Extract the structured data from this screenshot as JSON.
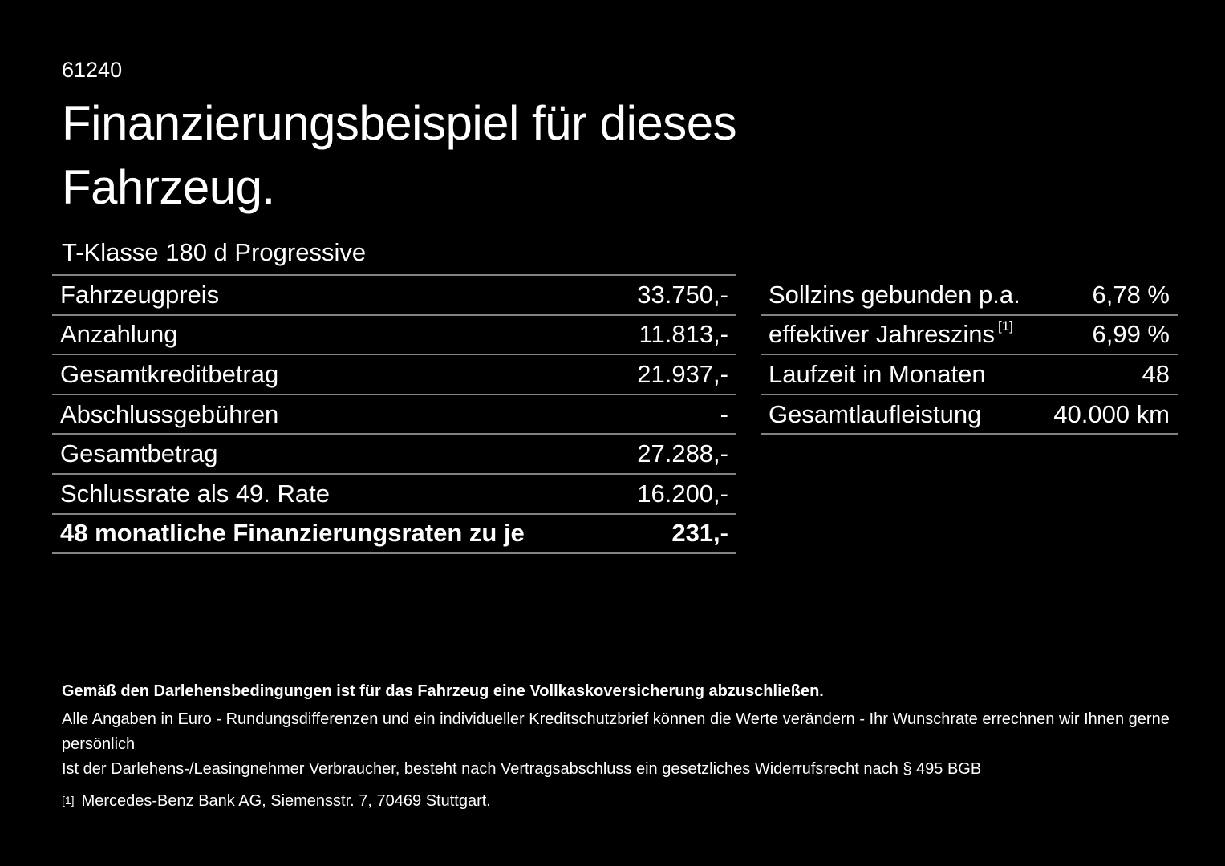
{
  "page": {
    "background_color": "#000000",
    "text_color": "#ffffff",
    "divider_color": "#828282"
  },
  "doc_code": "61240",
  "title": {
    "line1": "Finanzierungsbeispiel für dieses",
    "line2": "Fahrzeug."
  },
  "vehicle_model": "T-Klasse 180 d Progressive",
  "finance_table": {
    "rows": [
      {
        "label": "Fahrzeugpreis",
        "value": "33.750,-"
      },
      {
        "label": "Anzahlung",
        "value": "11.813,-"
      },
      {
        "label": "Gesamtkreditbetrag",
        "value": "21.937,-"
      },
      {
        "label": "Abschlussgebühren",
        "value": "-"
      },
      {
        "label": "Gesamtbetrag",
        "value": "27.288,-"
      },
      {
        "label": "Schlussrate als 49. Rate",
        "value": "16.200,-"
      },
      {
        "label": "48 monatliche Finanzierungsraten zu je",
        "value": "231,-"
      }
    ]
  },
  "conditions_table": {
    "rows": [
      {
        "label": "Sollzins gebunden p.a.",
        "value": "6,78 %"
      },
      {
        "label": "effektiver Jahreszins",
        "footnote_ref": "[1]",
        "value": "6,99 %"
      },
      {
        "label": "Laufzeit in Monaten",
        "value": "48"
      },
      {
        "label": "Gesamtlaufleistung",
        "value": "40.000 km"
      }
    ]
  },
  "notes": {
    "insurance_note": "Gemäß den Darlehensbedingungen ist für das Fahrzeug eine Vollkaskoversicherung abzuschließen.",
    "rounding_note": "Alle Angaben in Euro - Rundungsdifferenzen und ein individueller Kreditschutzbrief können die Werte verändern - Ihr Wunschrate errechnen wir Ihnen gerne persönlich",
    "withdrawal_note": "Ist der Darlehens-/Leasingnehmer Verbraucher, besteht nach Vertragsabschluss ein gesetzliches Widerrufsrecht nach § 495 BGB",
    "footnote_marker": "[1]",
    "footnote_text": "Mercedes-Benz Bank AG, Siemensstr. 7, 70469 Stuttgart."
  }
}
